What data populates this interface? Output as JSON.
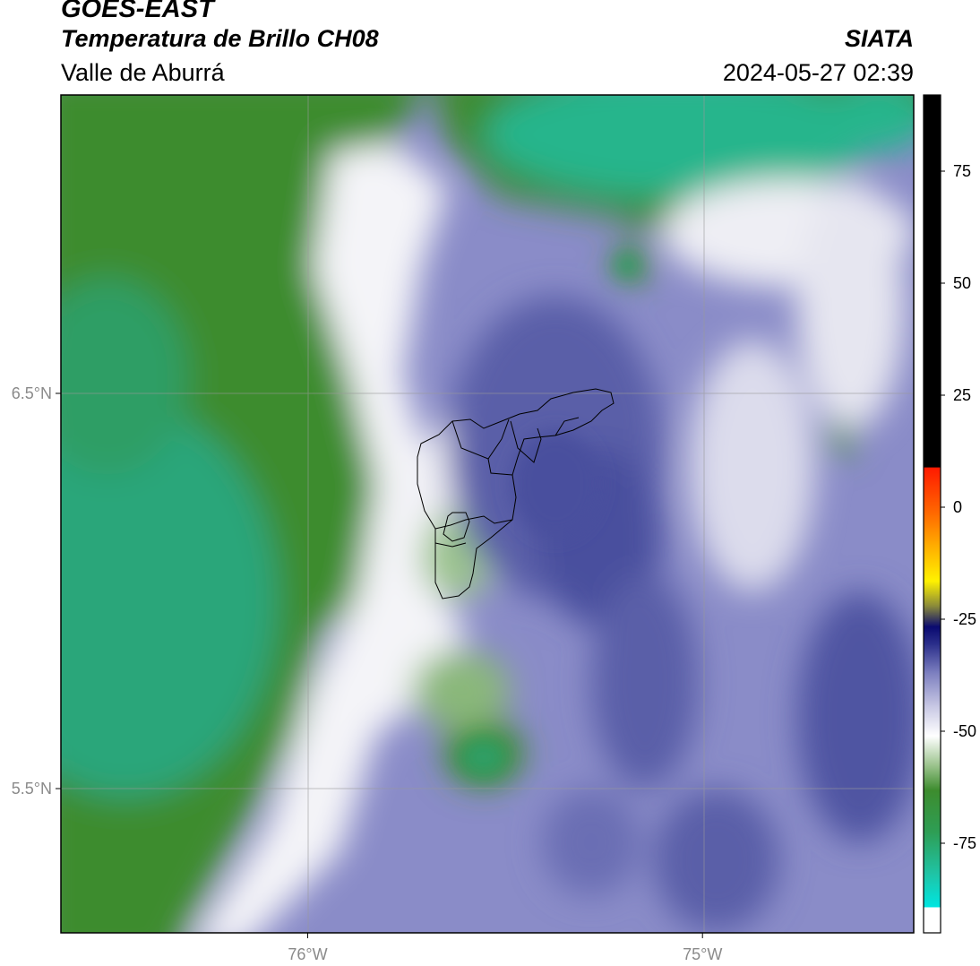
{
  "header": {
    "satellite": "GOES-EAST",
    "product": "Temperatura de Brillo CH08",
    "region": "Valle de Aburrá",
    "agency": "SIATA",
    "datetime": "2024-05-27 02:39"
  },
  "axes": {
    "lat_ticks": [
      {
        "value": 6.5,
        "label": "6.5°N"
      },
      {
        "value": 5.5,
        "label": "5.5°N"
      }
    ],
    "lon_ticks": [
      {
        "value": -76.0,
        "label": "76°W"
      },
      {
        "value": -75.0,
        "label": "75°W"
      }
    ],
    "lon_range": [
      -76.625,
      -74.465
    ],
    "lat_range": [
      5.135,
      7.255
    ],
    "grid": true
  },
  "colorbar": {
    "position": "right",
    "ticks": [
      {
        "value": 75,
        "label": "75"
      },
      {
        "value": 50,
        "label": "50"
      },
      {
        "value": 25,
        "label": "25"
      },
      {
        "value": 0,
        "label": "0"
      },
      {
        "value": -25,
        "label": "-25"
      },
      {
        "value": -50,
        "label": "-50"
      },
      {
        "value": -75,
        "label": "-75"
      }
    ],
    "range": [
      -95,
      92
    ]
  },
  "colors": {
    "green_dark": "#3d8c2e",
    "teal": "#27b58c",
    "purple_mid": "#8a8cc8",
    "purple_dark": "#4a4f9e",
    "white": "#f4f4f8"
  }
}
